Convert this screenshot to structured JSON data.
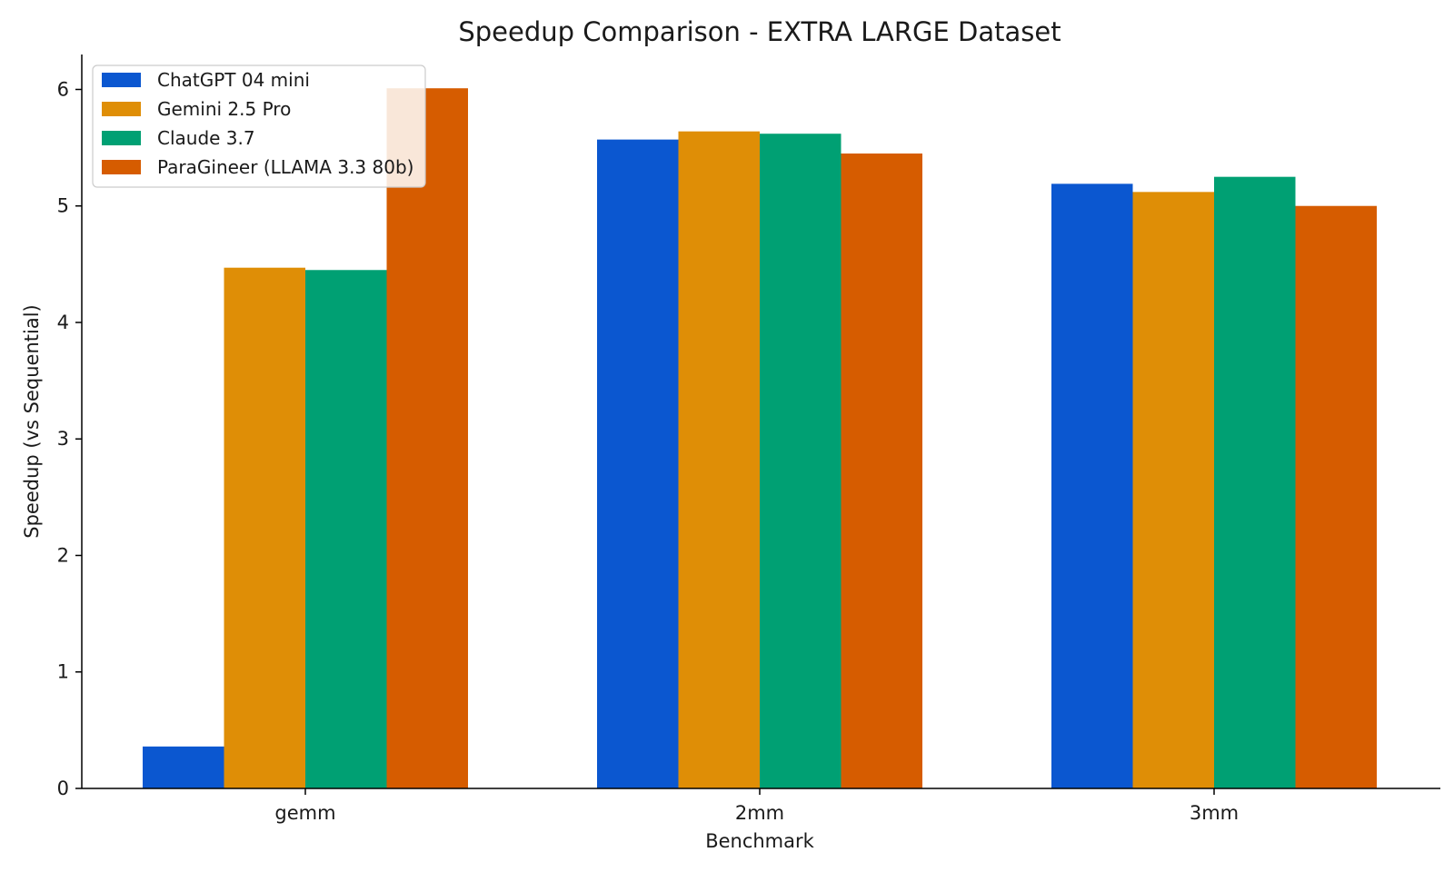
{
  "chart_data": {
    "type": "bar",
    "title": "Speedup Comparison - EXTRA LARGE Dataset",
    "xlabel": "Benchmark",
    "ylabel": "Speedup (vs Sequential)",
    "categories": [
      "gemm",
      "2mm",
      "3mm"
    ],
    "ylim": [
      0,
      6.3
    ],
    "yticks": [
      0,
      1,
      2,
      3,
      4,
      5,
      6
    ],
    "grid": false,
    "legend_position": "top-left",
    "series": [
      {
        "name": "ChatGPT 04 mini",
        "color": "#0b57d0",
        "values": [
          0.36,
          5.57,
          5.19
        ]
      },
      {
        "name": "Gemini 2.5 Pro",
        "color": "#df8e06",
        "values": [
          4.47,
          5.64,
          5.12
        ]
      },
      {
        "name": "Claude 3.7",
        "color": "#00a073",
        "values": [
          4.45,
          5.62,
          5.25
        ]
      },
      {
        "name": "ParaGineer (LLAMA 3.3 80b)",
        "color": "#d65c00",
        "values": [
          6.01,
          5.45,
          5.0
        ]
      }
    ]
  }
}
